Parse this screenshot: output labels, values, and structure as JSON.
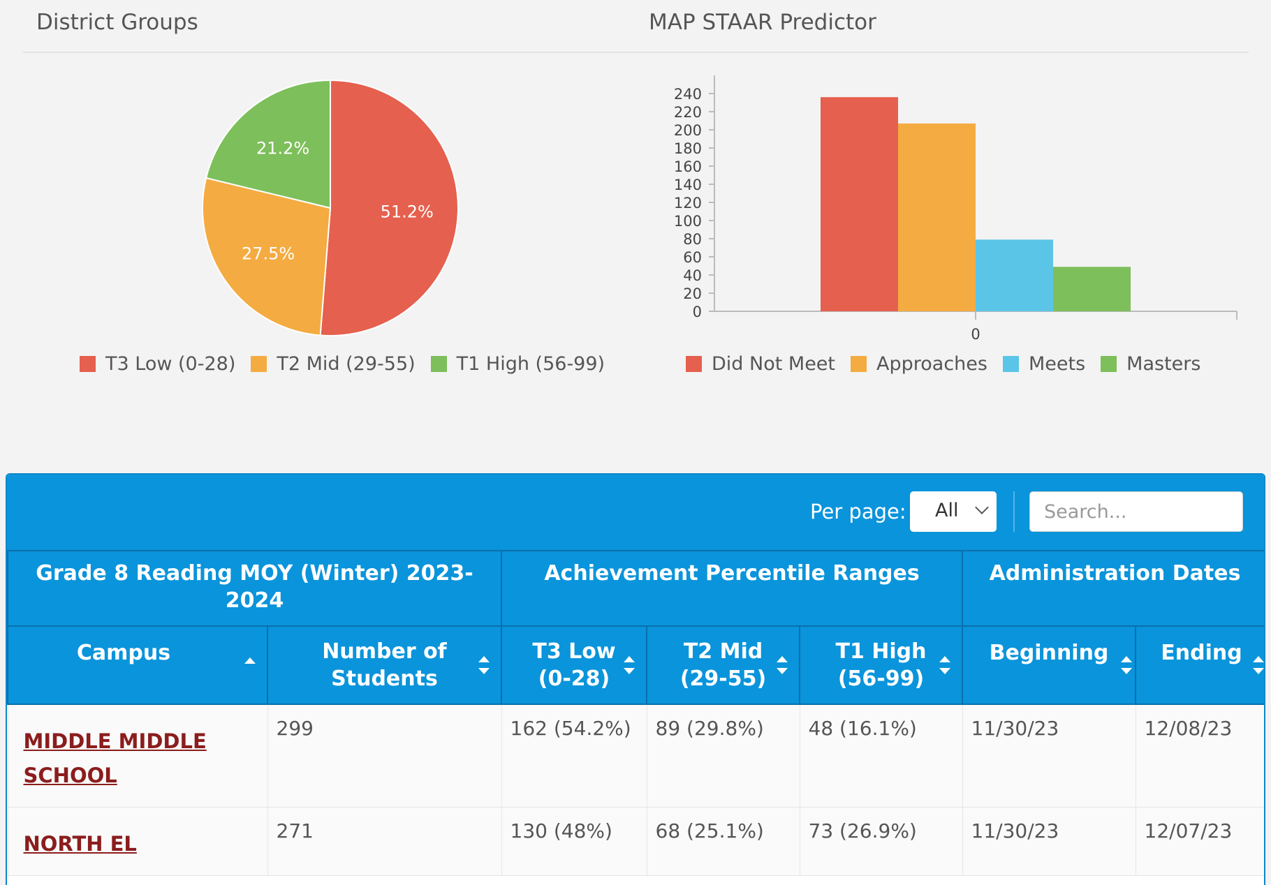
{
  "titles": {
    "district_groups": "District Groups",
    "staar_predictor": "MAP STAAR Predictor"
  },
  "chart_data": [
    {
      "type": "pie",
      "title": "District Groups",
      "labels": [
        "T3 Low (0-28)",
        "T2 Mid (29-55)",
        "T1 High (56-99)"
      ],
      "values": [
        51.2,
        27.5,
        21.2
      ],
      "value_labels": [
        "51.2%",
        "27.5%",
        "21.2%"
      ],
      "colors": [
        "#e5604e",
        "#f4ab41",
        "#7dbf5b"
      ],
      "legend": "bottom"
    },
    {
      "type": "bar",
      "title": "MAP STAAR Predictor",
      "categories": [
        "0"
      ],
      "series": [
        {
          "name": "Did Not Meet",
          "values": [
            236
          ],
          "color": "#e5604e"
        },
        {
          "name": "Approaches",
          "values": [
            207
          ],
          "color": "#f4ab41"
        },
        {
          "name": "Meets",
          "values": [
            79
          ],
          "color": "#5bc5e7"
        },
        {
          "name": "Masters",
          "values": [
            49
          ],
          "color": "#7dbf5b"
        }
      ],
      "yticks": [
        "0",
        "20",
        "40",
        "60",
        "80",
        "100",
        "120",
        "140",
        "160",
        "180",
        "200",
        "220",
        "240"
      ],
      "ylim": [
        0,
        260
      ],
      "legend": "bottom"
    }
  ],
  "toolbar": {
    "per_page_label": "Per page:",
    "per_page_value": "All",
    "search_placeholder": "Search..."
  },
  "table": {
    "groups": [
      "Grade 8 Reading MOY (Winter) 2023-2024",
      "Achievement Percentile Ranges",
      "Administration Dates"
    ],
    "columns": [
      {
        "l1": "Campus",
        "l2": ""
      },
      {
        "l1": "Number of",
        "l2": "Students"
      },
      {
        "l1": "T3 Low",
        "l2": "(0-28)"
      },
      {
        "l1": "T2 Mid",
        "l2": "(29-55)"
      },
      {
        "l1": "T1 High",
        "l2": "(56-99)"
      },
      {
        "l1": "Beginning",
        "l2": ""
      },
      {
        "l1": "Ending",
        "l2": ""
      }
    ],
    "rows": [
      {
        "campus_l1": "MIDDLE MIDDLE",
        "campus_l2": "SCHOOL",
        "students": "299",
        "t3": "162 (54.2%)",
        "t2": "89 (29.8%)",
        "t1": "48 (16.1%)",
        "beginning": "11/30/23",
        "ending": "12/08/23"
      },
      {
        "campus_l1": "NORTH EL",
        "campus_l2": "",
        "students": "271",
        "t3": "130 (48%)",
        "t2": "68 (25.1%)",
        "t1": "73 (26.9%)",
        "beginning": "11/30/23",
        "ending": "12/07/23"
      }
    ]
  }
}
